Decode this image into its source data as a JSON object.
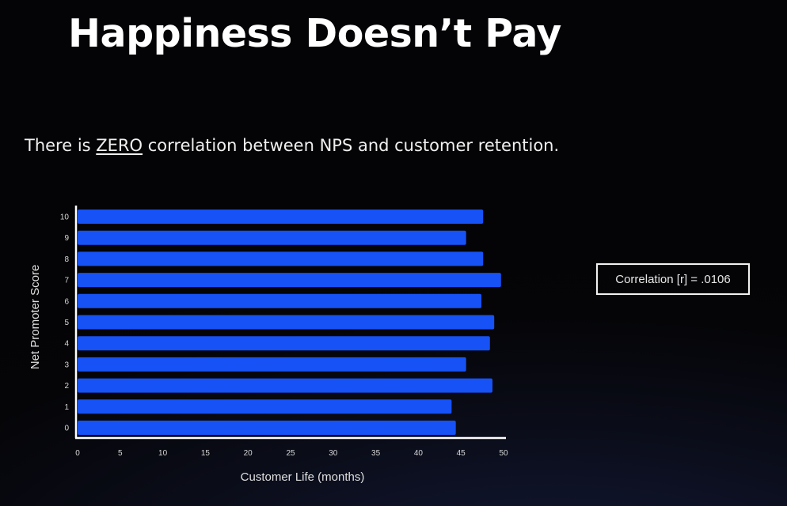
{
  "slide": {
    "title": "Happiness Doesn’t Pay",
    "subtitle_before": "There is ",
    "subtitle_emphasis": "ZERO",
    "subtitle_after": " correlation between NPS and customer retention."
  },
  "annotation": {
    "text": "Correlation [r] = .0106"
  },
  "colors": {
    "bar": "#1652f5",
    "axis": "#ffffff",
    "tick_text": "#d8d8d8",
    "label_text": "#e0e0e0"
  },
  "chart_data": {
    "type": "bar",
    "orientation": "horizontal",
    "categories": [
      "10",
      "9",
      "8",
      "7",
      "6",
      "5",
      "4",
      "3",
      "2",
      "1",
      "0"
    ],
    "values": [
      47.6,
      45.6,
      47.6,
      49.7,
      47.4,
      48.9,
      48.4,
      45.6,
      48.7,
      43.9,
      44.4
    ],
    "xlabel": "Customer Life (months)",
    "ylabel": "Net Promoter Score",
    "xlim": [
      0,
      50
    ],
    "xticks": [
      "0",
      "5",
      "10",
      "15",
      "20",
      "25",
      "30",
      "35",
      "40",
      "45",
      "50"
    ],
    "grid": false,
    "legend": "none"
  }
}
